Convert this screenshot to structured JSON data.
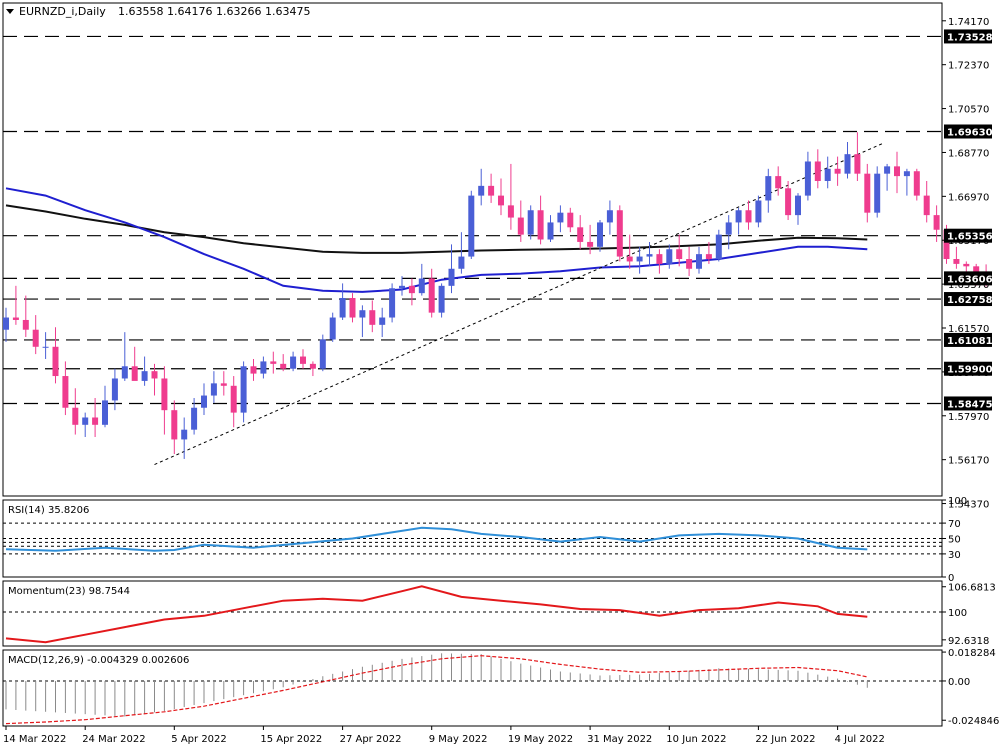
{
  "symbol_header": {
    "symbol": "EURNZD_i,Daily",
    "ohlc": "1.63558 1.64176 1.63266 1.63475"
  },
  "colors": {
    "bull": "#4a5fd6",
    "bear": "#ef3c8e",
    "ma_fast": "#1f1fd0",
    "ma_slow": "#111111",
    "rsi": "#2f8fd8",
    "momentum": "#e3181b",
    "macd_signal": "#e3181b",
    "macd_hist": "#8a8a8a",
    "grid_dash": "#000000",
    "border": "#000000",
    "price_label_bg": "#000000",
    "price_label_fg": "#ffffff"
  },
  "chart_data": [
    {
      "type": "candlestick",
      "name": "price",
      "ylim": [
        1.5468,
        1.749
      ],
      "y_ticks": [
        "1.74170",
        "1.72370",
        "1.70570",
        "1.68770",
        "1.66970",
        "1.65170",
        "1.63370",
        "1.61570",
        "1.59770",
        "1.57970",
        "1.56170",
        "1.54370"
      ],
      "x_labels": [
        {
          "label": "14 Mar 2022",
          "bar": 0
        },
        {
          "label": "24 Mar 2022",
          "bar": 8
        },
        {
          "label": "5 Apr 2022",
          "bar": 17
        },
        {
          "label": "15 Apr 2022",
          "bar": 26
        },
        {
          "label": "27 Apr 2022",
          "bar": 34
        },
        {
          "label": "9 May 2022",
          "bar": 43
        },
        {
          "label": "19 May 2022",
          "bar": 51
        },
        {
          "label": "31 May 2022",
          "bar": 59
        },
        {
          "label": "10 Jun 2022",
          "bar": 67
        },
        {
          "label": "22 Jun 2022",
          "bar": 76
        },
        {
          "label": "4 Jul 2022",
          "bar": 84
        }
      ],
      "levels": [
        {
          "value": 1.73528,
          "label": "1.73528"
        },
        {
          "value": 1.6963,
          "label": "1.69630"
        },
        {
          "value": 1.65356,
          "label": "1.65356"
        },
        {
          "value": 1.63606,
          "label": "1.63606"
        },
        {
          "value": 1.62758,
          "label": "1.62758"
        },
        {
          "value": 1.61081,
          "label": "1.61081"
        },
        {
          "value": 1.599,
          "label": "1.59900"
        },
        {
          "value": 1.58475,
          "label": "1.58475"
        }
      ],
      "trendline": {
        "from_bar": 15,
        "from_value": 1.5597,
        "to_bar": 88.5,
        "to_value": 1.6913
      },
      "ma_fast": [
        [
          0,
          1.673
        ],
        [
          4,
          1.67
        ],
        [
          8,
          1.664
        ],
        [
          12,
          1.659
        ],
        [
          16,
          1.653
        ],
        [
          20,
          1.646
        ],
        [
          24,
          1.64
        ],
        [
          28,
          1.633
        ],
        [
          32,
          1.631
        ],
        [
          36,
          1.6305
        ],
        [
          40,
          1.6315
        ],
        [
          44,
          1.6355
        ],
        [
          48,
          1.6375
        ],
        [
          52,
          1.638
        ],
        [
          56,
          1.639
        ],
        [
          60,
          1.6405
        ],
        [
          64,
          1.641
        ],
        [
          68,
          1.6425
        ],
        [
          72,
          1.644
        ],
        [
          76,
          1.6465
        ],
        [
          80,
          1.649
        ],
        [
          83,
          1.649
        ],
        [
          87,
          1.648
        ]
      ],
      "ma_slow": [
        [
          0,
          1.666
        ],
        [
          4,
          1.6635
        ],
        [
          8,
          1.6605
        ],
        [
          12,
          1.658
        ],
        [
          16,
          1.655
        ],
        [
          20,
          1.653
        ],
        [
          24,
          1.6505
        ],
        [
          28,
          1.6487
        ],
        [
          32,
          1.647
        ],
        [
          36,
          1.6465
        ],
        [
          40,
          1.6465
        ],
        [
          44,
          1.647
        ],
        [
          48,
          1.6475
        ],
        [
          52,
          1.6478
        ],
        [
          56,
          1.648
        ],
        [
          60,
          1.6483
        ],
        [
          64,
          1.6487
        ],
        [
          68,
          1.6493
        ],
        [
          72,
          1.65
        ],
        [
          76,
          1.6515
        ],
        [
          80,
          1.6527
        ],
        [
          84,
          1.6525
        ],
        [
          87,
          1.652
        ]
      ],
      "candles": [
        [
          1.615,
          1.624,
          1.61,
          1.62
        ],
        [
          1.62,
          1.633,
          1.617,
          1.619
        ],
        [
          1.619,
          1.629,
          1.612,
          1.615
        ],
        [
          1.615,
          1.621,
          1.605,
          1.608
        ],
        [
          1.608,
          1.614,
          1.603,
          1.608
        ],
        [
          1.608,
          1.616,
          1.593,
          1.596
        ],
        [
          1.596,
          1.602,
          1.58,
          1.583
        ],
        [
          1.583,
          1.591,
          1.572,
          1.576
        ],
        [
          1.576,
          1.581,
          1.571,
          1.579
        ],
        [
          1.579,
          1.587,
          1.571,
          1.576
        ],
        [
          1.576,
          1.592,
          1.575,
          1.586
        ],
        [
          1.586,
          1.599,
          1.582,
          1.595
        ],
        [
          1.595,
          1.614,
          1.594,
          1.6
        ],
        [
          1.6,
          1.608,
          1.596,
          1.594
        ],
        [
          1.594,
          1.604,
          1.592,
          1.598
        ],
        [
          1.598,
          1.601,
          1.588,
          1.595
        ],
        [
          1.595,
          1.6,
          1.572,
          1.582
        ],
        [
          1.582,
          1.586,
          1.564,
          1.57
        ],
        [
          1.57,
          1.579,
          1.562,
          1.574
        ],
        [
          1.574,
          1.587,
          1.572,
          1.583
        ],
        [
          1.583,
          1.593,
          1.58,
          1.588
        ],
        [
          1.588,
          1.598,
          1.585,
          1.593
        ],
        [
          1.593,
          1.598,
          1.588,
          1.592
        ],
        [
          1.592,
          1.596,
          1.575,
          1.581
        ],
        [
          1.581,
          1.602,
          1.577,
          1.6
        ],
        [
          1.6,
          1.603,
          1.594,
          1.597
        ],
        [
          1.597,
          1.604,
          1.595,
          1.602
        ],
        [
          1.602,
          1.606,
          1.597,
          1.601
        ],
        [
          1.601,
          1.605,
          1.598,
          1.599
        ],
        [
          1.599,
          1.606,
          1.598,
          1.604
        ],
        [
          1.604,
          1.607,
          1.599,
          1.601
        ],
        [
          1.601,
          1.602,
          1.596,
          1.599
        ],
        [
          1.599,
          1.613,
          1.598,
          1.611
        ],
        [
          1.611,
          1.622,
          1.61,
          1.62
        ],
        [
          1.62,
          1.634,
          1.619,
          1.628
        ],
        [
          1.628,
          1.63,
          1.618,
          1.62
        ],
        [
          1.62,
          1.625,
          1.612,
          1.623
        ],
        [
          1.623,
          1.627,
          1.614,
          1.617
        ],
        [
          1.617,
          1.624,
          1.612,
          1.62
        ],
        [
          1.62,
          1.634,
          1.618,
          1.632
        ],
        [
          1.632,
          1.637,
          1.629,
          1.633
        ],
        [
          1.633,
          1.636,
          1.625,
          1.63
        ],
        [
          1.63,
          1.642,
          1.629,
          1.636
        ],
        [
          1.636,
          1.64,
          1.62,
          1.622
        ],
        [
          1.622,
          1.634,
          1.62,
          1.633
        ],
        [
          1.633,
          1.65,
          1.63,
          1.64
        ],
        [
          1.64,
          1.655,
          1.638,
          1.645
        ],
        [
          1.645,
          1.672,
          1.644,
          1.67
        ],
        [
          1.67,
          1.681,
          1.666,
          1.674
        ],
        [
          1.674,
          1.679,
          1.667,
          1.67
        ],
        [
          1.67,
          1.677,
          1.662,
          1.666
        ],
        [
          1.666,
          1.683,
          1.656,
          1.661
        ],
        [
          1.661,
          1.668,
          1.651,
          1.654
        ],
        [
          1.654,
          1.666,
          1.652,
          1.664
        ],
        [
          1.664,
          1.67,
          1.65,
          1.652
        ],
        [
          1.652,
          1.662,
          1.651,
          1.659
        ],
        [
          1.659,
          1.666,
          1.655,
          1.663
        ],
        [
          1.663,
          1.665,
          1.655,
          1.657
        ],
        [
          1.657,
          1.662,
          1.648,
          1.651
        ],
        [
          1.651,
          1.658,
          1.646,
          1.649
        ],
        [
          1.649,
          1.66,
          1.647,
          1.659
        ],
        [
          1.659,
          1.668,
          1.654,
          1.664
        ],
        [
          1.664,
          1.666,
          1.643,
          1.645
        ],
        [
          1.645,
          1.654,
          1.64,
          1.643
        ],
        [
          1.643,
          1.649,
          1.638,
          1.645
        ],
        [
          1.645,
          1.651,
          1.641,
          1.646
        ],
        [
          1.646,
          1.648,
          1.638,
          1.642
        ],
        [
          1.642,
          1.65,
          1.64,
          1.648
        ],
        [
          1.648,
          1.654,
          1.641,
          1.644
        ],
        [
          1.644,
          1.649,
          1.637,
          1.64
        ],
        [
          1.64,
          1.649,
          1.638,
          1.646
        ],
        [
          1.646,
          1.651,
          1.642,
          1.644
        ],
        [
          1.644,
          1.656,
          1.643,
          1.654
        ],
        [
          1.654,
          1.662,
          1.648,
          1.659
        ],
        [
          1.659,
          1.665,
          1.654,
          1.664
        ],
        [
          1.664,
          1.668,
          1.656,
          1.659
        ],
        [
          1.659,
          1.67,
          1.657,
          1.668
        ],
        [
          1.668,
          1.681,
          1.663,
          1.678
        ],
        [
          1.678,
          1.682,
          1.67,
          1.673
        ],
        [
          1.673,
          1.676,
          1.66,
          1.662
        ],
        [
          1.662,
          1.671,
          1.658,
          1.67
        ],
        [
          1.67,
          1.688,
          1.668,
          1.684
        ],
        [
          1.684,
          1.689,
          1.673,
          1.676
        ],
        [
          1.676,
          1.686,
          1.673,
          1.681
        ],
        [
          1.681,
          1.686,
          1.674,
          1.679
        ],
        [
          1.679,
          1.692,
          1.677,
          1.687
        ],
        [
          1.687,
          1.696,
          1.676,
          1.679
        ],
        [
          1.679,
          1.683,
          1.659,
          1.663
        ],
        [
          1.663,
          1.682,
          1.661,
          1.679
        ],
        [
          1.679,
          1.683,
          1.672,
          1.682
        ],
        [
          1.682,
          1.688,
          1.671,
          1.678
        ],
        [
          1.678,
          1.681,
          1.67,
          1.68
        ],
        [
          1.68,
          1.681,
          1.668,
          1.67
        ],
        [
          1.67,
          1.676,
          1.659,
          1.662
        ],
        [
          1.662,
          1.666,
          1.651,
          1.656
        ],
        [
          1.656,
          1.658,
          1.642,
          1.644
        ],
        [
          1.644,
          1.649,
          1.64,
          1.642
        ],
        [
          1.642,
          1.643,
          1.637,
          1.641
        ],
        [
          1.641,
          1.642,
          1.633,
          1.638
        ],
        [
          1.6356,
          1.6418,
          1.6327,
          1.6348
        ]
      ]
    },
    {
      "type": "line",
      "name": "rsi",
      "label": "RSI(14) 35.8206",
      "ylim": [
        0,
        100
      ],
      "y_ticks": [
        "100",
        "70",
        "50",
        "30",
        "0"
      ],
      "levels": [
        70,
        50,
        45,
        40,
        30
      ],
      "x": [
        0,
        5,
        10,
        15,
        17,
        20,
        25,
        30,
        35,
        38,
        42,
        45,
        48,
        52,
        56,
        60,
        64,
        68,
        72,
        76,
        80,
        84,
        87
      ],
      "y": [
        36,
        34,
        38,
        34,
        35,
        42,
        38,
        44,
        50,
        56,
        64,
        62,
        56,
        52,
        46,
        52,
        46,
        54,
        56,
        54,
        50,
        38,
        35.8
      ]
    },
    {
      "type": "line",
      "name": "momentum",
      "label": "Momentum(23) 98.7544",
      "ylim": [
        91.0,
        108.2
      ],
      "y_ticks": [
        "106.6813",
        "100",
        "92.6318"
      ],
      "levels": [
        100
      ],
      "x": [
        0,
        4,
        8,
        12,
        16,
        20,
        24,
        28,
        32,
        36,
        40,
        42,
        46,
        50,
        54,
        58,
        62,
        66,
        70,
        74,
        78,
        82,
        84,
        87
      ],
      "y": [
        93.0,
        92.0,
        94.0,
        96.0,
        98.0,
        99.0,
        101.0,
        103.0,
        103.5,
        103.0,
        105.5,
        106.8,
        104.0,
        103.0,
        102.0,
        100.8,
        100.5,
        99.0,
        100.5,
        101.0,
        102.5,
        101.5,
        99.5,
        98.75
      ]
    },
    {
      "type": "bar+line",
      "name": "macd",
      "label": "MACD(12,26,9) -0.004329 0.002606",
      "ylim": [
        -0.0285,
        0.0196
      ],
      "y_ticks": [
        "0.018284",
        "0.00",
        "-0.024846"
      ],
      "histogram": {
        "x": [
          0,
          4,
          8,
          12,
          16,
          20,
          24,
          28,
          32,
          36,
          40,
          44,
          48,
          52,
          56,
          60,
          64,
          68,
          72,
          76,
          80,
          84,
          87
        ],
        "y": [
          -0.018,
          -0.0195,
          -0.021,
          -0.0225,
          -0.019,
          -0.014,
          -0.009,
          -0.004,
          0.003,
          0.009,
          0.014,
          0.0175,
          0.017,
          0.011,
          0.006,
          0.0035,
          0.004,
          0.006,
          0.008,
          0.0075,
          0.0065,
          0.0015,
          -0.0043
        ]
      },
      "signal": {
        "x": [
          0,
          4,
          8,
          12,
          16,
          20,
          24,
          28,
          32,
          36,
          40,
          44,
          48,
          52,
          56,
          60,
          64,
          68,
          72,
          76,
          80,
          84,
          87
        ],
        "y": [
          -0.027,
          -0.026,
          -0.0245,
          -0.022,
          -0.0195,
          -0.016,
          -0.011,
          -0.006,
          -0.0005,
          0.005,
          0.01,
          0.014,
          0.016,
          0.014,
          0.0105,
          0.0075,
          0.0055,
          0.006,
          0.007,
          0.008,
          0.0085,
          0.0065,
          0.0026
        ]
      }
    }
  ]
}
